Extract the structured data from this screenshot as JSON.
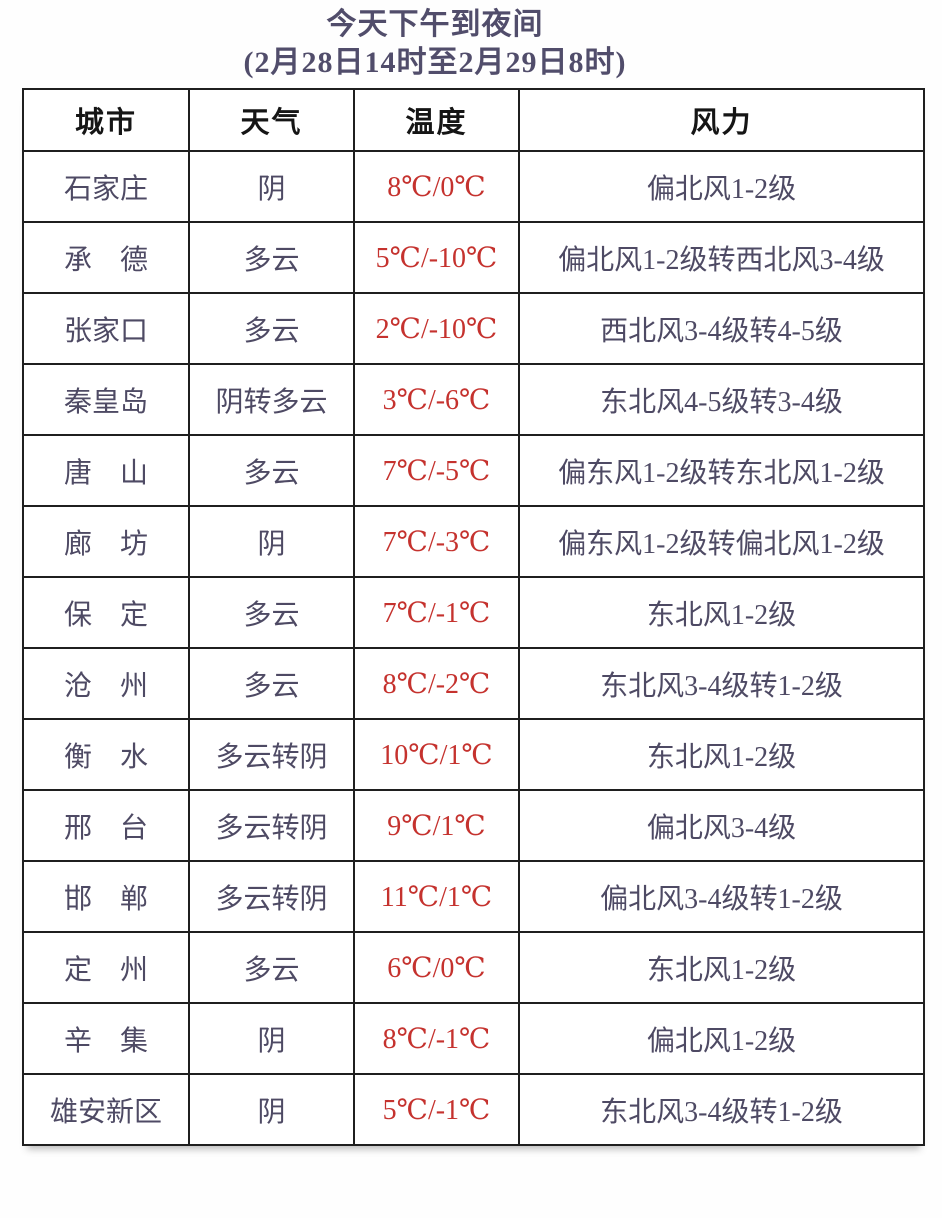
{
  "title": {
    "line1": "今天下午到夜间",
    "line2": "(2月28日14时至2月29日8时)"
  },
  "table": {
    "headers": [
      "城市",
      "天气",
      "温度",
      "风力"
    ],
    "rows": [
      {
        "city": "石家庄",
        "weather": "阴",
        "temp": "8℃/0℃",
        "wind": "偏北风1-2级"
      },
      {
        "city": "承　德",
        "weather": "多云",
        "temp": "5℃/-10℃",
        "wind": "偏北风1-2级转西北风3-4级"
      },
      {
        "city": "张家口",
        "weather": "多云",
        "temp": "2℃/-10℃",
        "wind": "西北风3-4级转4-5级"
      },
      {
        "city": "秦皇岛",
        "weather": "阴转多云",
        "temp": "3℃/-6℃",
        "wind": "东北风4-5级转3-4级"
      },
      {
        "city": "唐　山",
        "weather": "多云",
        "temp": "7℃/-5℃",
        "wind": "偏东风1-2级转东北风1-2级"
      },
      {
        "city": "廊　坊",
        "weather": "阴",
        "temp": "7℃/-3℃",
        "wind": "偏东风1-2级转偏北风1-2级"
      },
      {
        "city": "保　定",
        "weather": "多云",
        "temp": "7℃/-1℃",
        "wind": "东北风1-2级"
      },
      {
        "city": "沧　州",
        "weather": "多云",
        "temp": "8℃/-2℃",
        "wind": "东北风3-4级转1-2级"
      },
      {
        "city": "衡　水",
        "weather": "多云转阴",
        "temp": "10℃/1℃",
        "wind": "东北风1-2级"
      },
      {
        "city": "邢　台",
        "weather": "多云转阴",
        "temp": "9℃/1℃",
        "wind": "偏北风3-4级"
      },
      {
        "city": "邯　郸",
        "weather": "多云转阴",
        "temp": "11℃/1℃",
        "wind": "偏北风3-4级转1-2级"
      },
      {
        "city": "定　州",
        "weather": "多云",
        "temp": "6℃/0℃",
        "wind": "东北风1-2级"
      },
      {
        "city": "辛　集",
        "weather": "阴",
        "temp": "8℃/-1℃",
        "wind": "偏北风1-2级"
      },
      {
        "city": "雄安新区",
        "weather": "阴",
        "temp": "5℃/-1℃",
        "wind": "东北风3-4级转1-2级"
      }
    ]
  },
  "colors": {
    "title": "#514d6b",
    "body_text": "#4e4a64",
    "header_text": "#151515",
    "temperature_red": "#c5322e",
    "border": "#1f1f1f",
    "background": "#fefefe"
  }
}
